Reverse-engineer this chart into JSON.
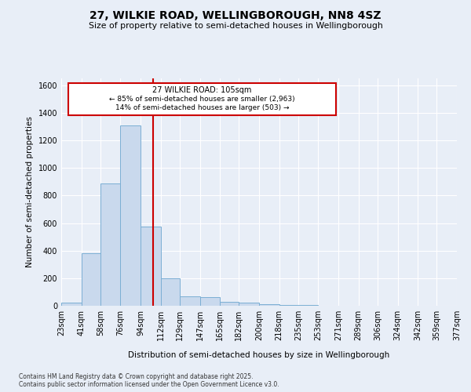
{
  "title": "27, WILKIE ROAD, WELLINGBOROUGH, NN8 4SZ",
  "subtitle": "Size of property relative to semi-detached houses in Wellingborough",
  "xlabel": "Distribution of semi-detached houses by size in Wellingborough",
  "ylabel": "Number of semi-detached properties",
  "bin_labels": [
    "23sqm",
    "41sqm",
    "58sqm",
    "76sqm",
    "94sqm",
    "112sqm",
    "129sqm",
    "147sqm",
    "165sqm",
    "182sqm",
    "200sqm",
    "218sqm",
    "235sqm",
    "253sqm",
    "271sqm",
    "289sqm",
    "306sqm",
    "324sqm",
    "342sqm",
    "359sqm",
    "377sqm"
  ],
  "bin_edges": [
    23,
    41,
    58,
    76,
    94,
    112,
    129,
    147,
    165,
    182,
    200,
    218,
    235,
    253,
    271,
    289,
    306,
    324,
    342,
    359,
    377
  ],
  "bar_heights": [
    20,
    380,
    890,
    1310,
    575,
    200,
    70,
    65,
    30,
    20,
    10,
    5,
    3,
    2,
    2,
    1,
    0,
    1,
    0,
    0
  ],
  "bar_color": "#c9d9ed",
  "bar_edge_color": "#7bafd4",
  "vline_x": 105,
  "vline_color": "#cc0000",
  "annotation_title": "27 WILKIE ROAD: 105sqm",
  "annotation_line1": "← 85% of semi-detached houses are smaller (2,963)",
  "annotation_line2": "14% of semi-detached houses are larger (503) →",
  "annotation_box_color": "#cc0000",
  "ylim": [
    0,
    1650
  ],
  "yticks": [
    0,
    200,
    400,
    600,
    800,
    1000,
    1200,
    1400,
    1600
  ],
  "background_color": "#e8eef7",
  "grid_color": "#ffffff",
  "footer_line1": "Contains HM Land Registry data © Crown copyright and database right 2025.",
  "footer_line2": "Contains public sector information licensed under the Open Government Licence v3.0."
}
